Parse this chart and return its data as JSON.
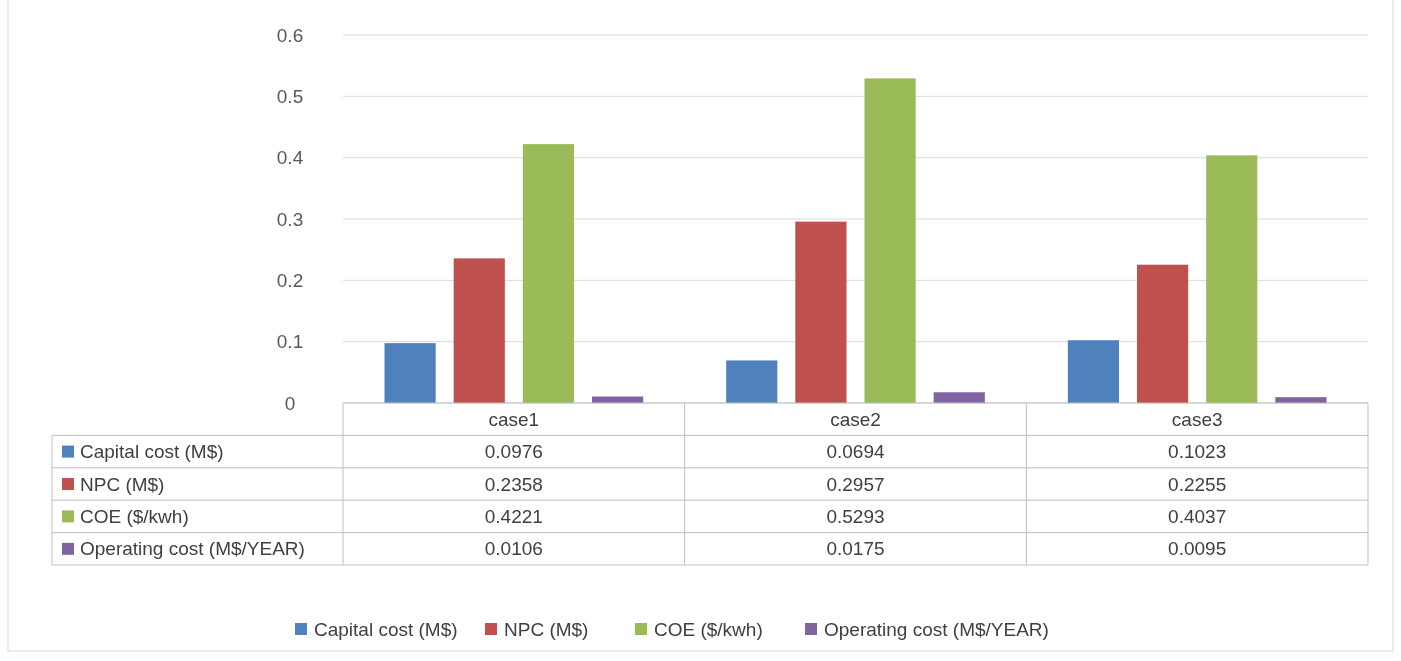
{
  "chart_data": {
    "type": "bar",
    "categories": [
      "case1",
      "case2",
      "case3"
    ],
    "series": [
      {
        "name": "Capital cost (M$)",
        "color": "#4f81bd",
        "values": [
          0.0976,
          0.0694,
          0.1023
        ]
      },
      {
        "name": "NPC (M$)",
        "color": "#c0504d",
        "values": [
          0.2358,
          0.2957,
          0.2255
        ]
      },
      {
        "name": "COE ($/kwh)",
        "color": "#9bbb59",
        "values": [
          0.4221,
          0.5293,
          0.4037
        ]
      },
      {
        "name": "Operating cost (M$/YEAR)",
        "color": "#8064a2",
        "values": [
          0.0106,
          0.0175,
          0.0095
        ]
      }
    ],
    "ylim": [
      0,
      0.6
    ],
    "yticks": [
      0,
      0.1,
      0.2,
      0.3,
      0.4,
      0.5,
      0.6
    ],
    "grid": "y",
    "legend": "bottom",
    "data_labels": true
  }
}
